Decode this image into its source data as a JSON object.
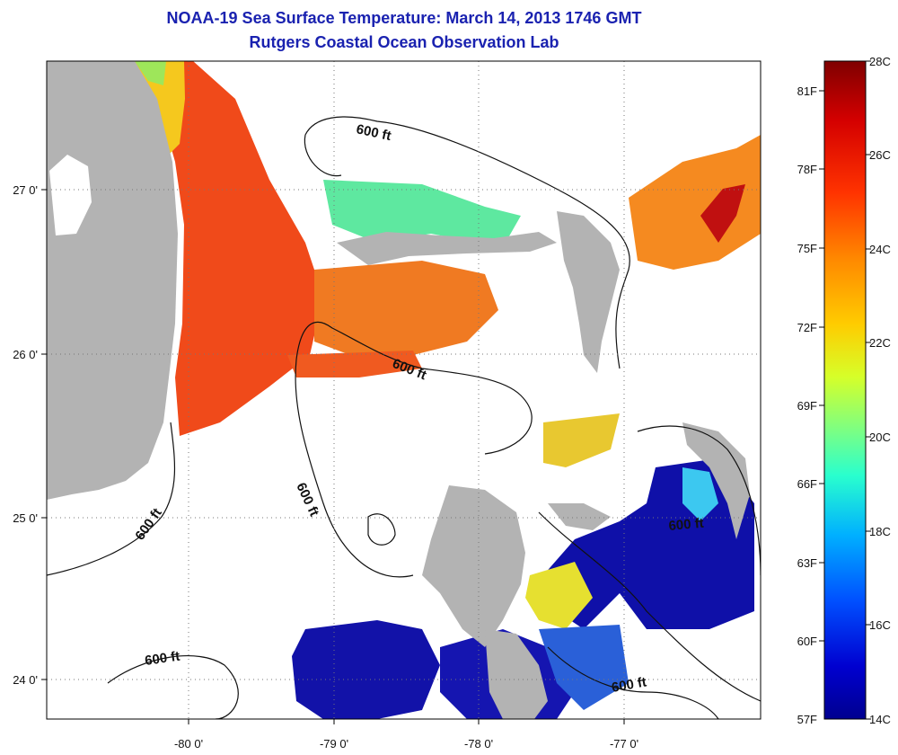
{
  "title": "NOAA-19 Sea Surface Temperature:  March 14, 2013 1746 GMT",
  "subtitle": "Rutgers Coastal Ocean Observation Lab",
  "map": {
    "lon_ticks": [
      "-80 0'",
      "-79 0'",
      "-78 0'",
      "-77 0'"
    ],
    "lat_ticks": [
      "27 0'",
      "26 0'",
      "25 0'",
      "24 0'"
    ],
    "contour_labels": [
      "600 ft",
      "600 ft",
      "600 ft",
      "600 ft",
      "600 ft",
      "600 ft",
      "600 ft"
    ],
    "colors": {
      "land": "#b3b3b3",
      "cloud": "#ffffff",
      "warm_water": "#f04a1a",
      "cool_water": "#1010b0"
    }
  },
  "colorbar": {
    "celsius_ticks": [
      "28C",
      "26C",
      "24C",
      "22C",
      "20C",
      "18C",
      "16C",
      "14C"
    ],
    "fahrenheit_ticks": [
      "81F",
      "78F",
      "75F",
      "72F",
      "69F",
      "66F",
      "63F",
      "60F",
      "57F"
    ],
    "range_celsius": [
      14,
      28
    ],
    "gradient": [
      "#7f0000",
      "#d40000",
      "#ff3300",
      "#ff8800",
      "#ffcc00",
      "#d6ff29",
      "#7dff82",
      "#29ffce",
      "#00b0ff",
      "#0050ff",
      "#0000d0",
      "#00008f"
    ]
  }
}
